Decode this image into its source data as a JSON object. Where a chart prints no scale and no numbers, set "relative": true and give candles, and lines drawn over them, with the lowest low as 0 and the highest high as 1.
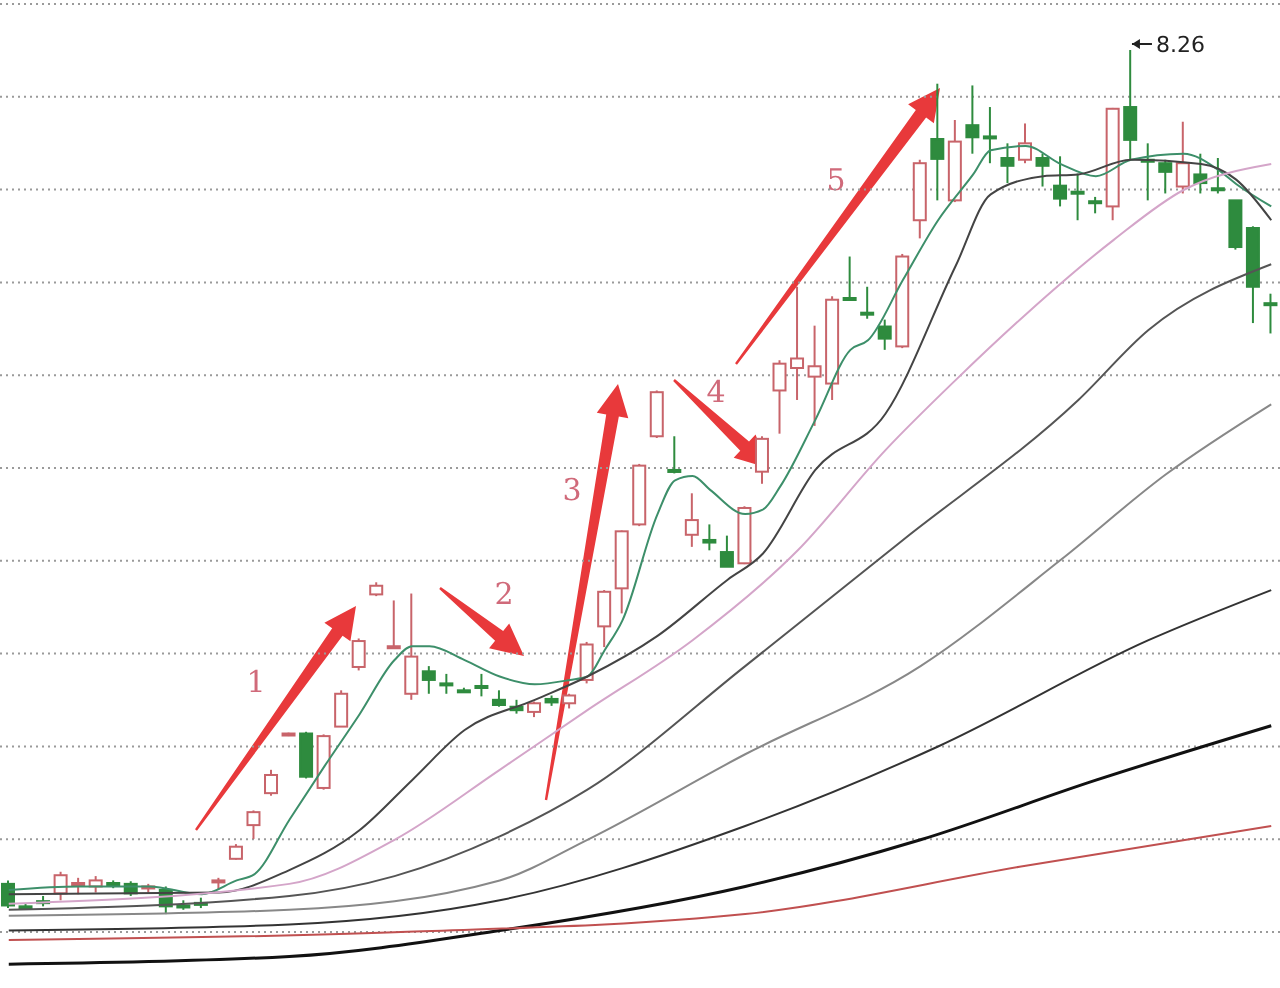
{
  "chart_data": {
    "type": "candlestick",
    "relative": true,
    "grid": "y",
    "categories": [
      null,
      null,
      null,
      null,
      null,
      null,
      null,
      null,
      null,
      null,
      null,
      null,
      null,
      null,
      null,
      null,
      null,
      null,
      null,
      null,
      null,
      null,
      null,
      null,
      null,
      null,
      null,
      null,
      null,
      null,
      null,
      null,
      null,
      null,
      null,
      null,
      null,
      null,
      null,
      null,
      null,
      null,
      null,
      null,
      null,
      null,
      null,
      null,
      null,
      null,
      null,
      null,
      null,
      null,
      null,
      null,
      null,
      null,
      null,
      null,
      null,
      null,
      null,
      null,
      null,
      null,
      null,
      null,
      null,
      null,
      null,
      null,
      null
    ],
    "ohlc": [
      [
        0.035,
        0.039,
        0.007,
        0.01
      ],
      [
        0.009,
        0.012,
        0.005,
        0.008
      ],
      [
        0.015,
        0.021,
        0.009,
        0.014
      ],
      [
        0.024,
        0.049,
        0.016,
        0.045
      ],
      [
        0.035,
        0.042,
        0.023,
        0.036
      ],
      [
        0.032,
        0.044,
        0.025,
        0.039
      ],
      [
        0.036,
        0.039,
        0.03,
        0.035
      ],
      [
        0.035,
        0.038,
        0.021,
        0.024
      ],
      [
        0.031,
        0.035,
        0.025,
        0.032
      ],
      [
        0.028,
        0.032,
        0,
        0.009
      ],
      [
        0.01,
        0.016,
        0.005,
        0.009
      ],
      [
        0.013,
        0.019,
        0.007,
        0.012
      ],
      [
        0.038,
        0.042,
        0.028,
        0.039
      ],
      [
        0.064,
        0.081,
        0.063,
        0.078
      ],
      [
        0.103,
        0.12,
        0.087,
        0.118
      ],
      [
        0.14,
        0.167,
        0.137,
        0.161
      ],
      [
        0.208,
        0.21,
        0.206,
        0.209
      ],
      [
        0.209,
        0.211,
        0.157,
        0.159
      ],
      [
        0.146,
        0.208,
        0.144,
        0.206
      ],
      [
        0.217,
        0.259,
        0.217,
        0.255
      ],
      [
        0.286,
        0.319,
        0.282,
        0.316
      ],
      [
        0.37,
        0.384,
        0.368,
        0.38
      ],
      [
        0.31,
        0.363,
        0.308,
        0.31
      ],
      [
        0.255,
        0.371,
        0.248,
        0.298
      ],
      [
        0.281,
        0.287,
        0.255,
        0.271
      ],
      [
        0.267,
        0.278,
        0.255,
        0.266
      ],
      [
        0.259,
        0.262,
        0.257,
        0.258
      ],
      [
        0.264,
        0.278,
        0.252,
        0.263
      ],
      [
        0.248,
        0.259,
        0.24,
        0.242
      ],
      [
        0.24,
        0.248,
        0.232,
        0.236
      ],
      [
        0.234,
        0.246,
        0.228,
        0.244
      ],
      [
        0.249,
        0.253,
        0.241,
        0.245
      ],
      [
        0.244,
        0.255,
        0.238,
        0.253
      ],
      [
        0.271,
        0.315,
        0.267,
        0.312
      ],
      [
        0.333,
        0.375,
        0.309,
        0.373
      ],
      [
        0.377,
        0.444,
        0.348,
        0.443
      ],
      [
        0.451,
        0.521,
        0.449,
        0.519
      ],
      [
        0.553,
        0.606,
        0.551,
        0.604
      ],
      [
        0.514,
        0.553,
        0.51,
        0.512
      ],
      [
        0.439,
        0.487,
        0.425,
        0.456
      ],
      [
        0.433,
        0.451,
        0.421,
        0.43
      ],
      [
        0.419,
        0.438,
        0.402,
        0.402
      ],
      [
        0.406,
        0.472,
        0.405,
        0.47
      ],
      [
        0.512,
        0.553,
        0.498,
        0.55
      ],
      [
        0.606,
        0.641,
        0.556,
        0.637
      ],
      [
        0.632,
        0.726,
        0.595,
        0.643
      ],
      [
        0.622,
        0.681,
        0.565,
        0.634
      ],
      [
        0.614,
        0.715,
        0.595,
        0.711
      ],
      [
        0.713,
        0.761,
        0.71,
        0.711
      ],
      [
        0.696,
        0.726,
        0.689,
        0.694
      ],
      [
        0.68,
        0.688,
        0.653,
        0.666
      ],
      [
        0.657,
        0.764,
        0.655,
        0.761
      ],
      [
        0.803,
        0.873,
        0.782,
        0.869
      ],
      [
        0.897,
        0.961,
        0.826,
        0.874
      ],
      [
        0.826,
        0.919,
        0.824,
        0.894
      ],
      [
        0.913,
        0.959,
        0.88,
        0.899
      ],
      [
        0.9,
        0.934,
        0.869,
        0.898
      ],
      [
        0.875,
        0.892,
        0.846,
        0.866
      ],
      [
        0.873,
        0.915,
        0.869,
        0.892
      ],
      [
        0.875,
        0.88,
        0.842,
        0.866
      ],
      [
        0.843,
        0.877,
        0.819,
        0.828
      ],
      [
        0.836,
        0.857,
        0.803,
        0.835
      ],
      [
        0.825,
        0.83,
        0.811,
        0.823
      ],
      [
        0.819,
        0.933,
        0.803,
        0.932
      ],
      [
        0.934,
        1,
        0.873,
        0.896
      ],
      [
        0.873,
        0.892,
        0.826,
        0.871
      ],
      [
        0.869,
        0.873,
        0.834,
        0.859
      ],
      [
        0.842,
        0.917,
        0.834,
        0.869
      ],
      [
        0.856,
        0.88,
        0.834,
        0.846
      ],
      [
        0.84,
        0.875,
        0.834,
        0.838
      ],
      [
        0.826,
        0.826,
        0.769,
        0.772
      ],
      [
        0.794,
        0.796,
        0.684,
        0.726
      ],
      [
        0.707,
        0.718,
        0.672,
        0.705
      ]
    ],
    "colors": [
      "#2e8b3e",
      "#2e8b3e",
      "#2e8b3e",
      "#c8646a",
      "#c8646a",
      "#c8646a",
      "#2e8b3e",
      "#2e8b3e",
      "#c8646a",
      "#2e8b3e",
      "#2e8b3e",
      "#2e8b3e",
      "#c8646a",
      "#c8646a",
      "#c8646a",
      "#c8646a",
      "#c8646a",
      "#2e8b3e",
      "#c8646a",
      "#c8646a",
      "#c8646a",
      "#c8646a",
      "#c8646a",
      "#c8646a",
      "#2e8b3e",
      "#2e8b3e",
      "#2e8b3e",
      "#2e8b3e",
      "#2e8b3e",
      "#2e8b3e",
      "#c8646a",
      "#2e8b3e",
      "#c8646a",
      "#c8646a",
      "#c8646a",
      "#c8646a",
      "#c8646a",
      "#c8646a",
      "#2e8b3e",
      "#c8646a",
      "#2e8b3e",
      "#2e8b3e",
      "#c8646a",
      "#c8646a",
      "#c8646a",
      "#c8646a",
      "#c8646a",
      "#c8646a",
      "#2e8b3e",
      "#2e8b3e",
      "#2e8b3e",
      "#c8646a",
      "#c8646a",
      "#2e8b3e",
      "#c8646a",
      "#2e8b3e",
      "#2e8b3e",
      "#2e8b3e",
      "#c8646a",
      "#2e8b3e",
      "#2e8b3e",
      "#2e8b3e",
      "#2e8b3e",
      "#c8646a",
      "#2e8b3e",
      "#2e8b3e",
      "#2e8b3e",
      "#c8646a",
      "#2e8b3e",
      "#2e8b3e",
      "#2e8b3e",
      "#2e8b3e",
      "#2e8b3e"
    ],
    "series": [
      {
        "type": "line",
        "color": "#3d8f6a",
        "values": [
          0.028,
          null,
          null,
          null,
          0.032,
          null,
          null,
          null,
          0.032,
          null,
          null,
          0.023,
          null,
          0.039,
          0.046,
          null,
          0.109,
          null,
          0.171,
          null,
          0.231,
          null,
          0.294,
          0.31,
          0.31,
          null,
          0.294,
          null,
          0.275,
          null,
          0.266,
          null,
          0.271,
          0.275,
          0.306,
          0.34,
          null,
          0.463,
          0.502,
          0.507,
          0.491,
          null,
          0.463,
          0.468,
          0.495,
          null,
          0.572,
          null,
          0.653,
          0.664,
          null,
          0.734,
          null,
          0.803,
          null,
          0.856,
          0.884,
          null,
          0.889,
          null,
          0.868,
          null,
          0.854,
          null,
          0.873,
          null,
          null,
          0.88,
          null,
          0.861,
          0.845,
          null,
          0.819
        ]
      },
      {
        "type": "line",
        "color": "#444444",
        "values": [
          0.023,
          null,
          null,
          null,
          null,
          null,
          null,
          null,
          null,
          null,
          null,
          null,
          0.025,
          null,
          null,
          null,
          0.051,
          null,
          null,
          null,
          0.097,
          null,
          null,
          0.155,
          null,
          null,
          0.213,
          null,
          null,
          null,
          0.248,
          null,
          null,
          0.275,
          null,
          null,
          null,
          0.322,
          null,
          null,
          null,
          0.387,
          null,
          0.417,
          null,
          null,
          0.514,
          null,
          null,
          null,
          0.579,
          null,
          null,
          null,
          0.75,
          null,
          0.833,
          null,
          null,
          0.854,
          null,
          0.856,
          null,
          null,
          0.873,
          null,
          null,
          null,
          0.868,
          null,
          0.85,
          null,
          0.803
        ]
      },
      {
        "type": "line",
        "color": "#d4a5c9",
        "values": [
          0.012,
          null,
          null,
          null,
          null,
          null,
          null,
          null,
          null,
          null,
          null,
          null,
          null,
          null,
          null,
          null,
          0.035,
          null,
          null,
          null,
          null,
          null,
          0.086,
          null,
          null,
          null,
          null,
          null,
          0.167,
          null,
          null,
          null,
          null,
          0.236,
          null,
          null,
          null,
          null,
          null,
          0.317,
          null,
          null,
          null,
          null,
          null,
          0.421,
          null,
          null,
          null,
          null,
          0.537,
          null,
          null,
          null,
          0.618,
          null,
          null,
          null,
          0.694,
          null,
          null,
          null,
          null,
          0.78,
          null,
          null,
          null,
          0.838,
          null,
          null,
          null,
          null,
          0.868
        ]
      },
      {
        "type": "line",
        "color": "#555555",
        "values": [
          0.005,
          null,
          null,
          null,
          null,
          null,
          null,
          null,
          null,
          null,
          null,
          null,
          null,
          null,
          null,
          null,
          0.021,
          null,
          null,
          null,
          null,
          null,
          0.044,
          null,
          null,
          null,
          null,
          null,
          0.09,
          null,
          null,
          null,
          null,
          0.144,
          null,
          null,
          null,
          null,
          null,
          null,
          null,
          null,
          0.287,
          null,
          null,
          null,
          null,
          null,
          null,
          null,
          null,
          0.433,
          null,
          null,
          null,
          null,
          null,
          null,
          null,
          null,
          null,
          0.595,
          null,
          null,
          null,
          0.676,
          null,
          null,
          null,
          null,
          null,
          null,
          0.752
        ]
      },
      {
        "type": "line",
        "color": "#888888",
        "values": [
          -0.002,
          null,
          null,
          null,
          null,
          null,
          null,
          null,
          null,
          null,
          null,
          null,
          null,
          null,
          null,
          null,
          0.005,
          null,
          null,
          null,
          null,
          null,
          null,
          null,
          null,
          null,
          null,
          null,
          0.039,
          null,
          null,
          null,
          null,
          0.086,
          null,
          null,
          null,
          null,
          null,
          null,
          null,
          null,
          0.185,
          null,
          null,
          null,
          null,
          null,
          null,
          null,
          null,
          null,
          0.287,
          null,
          null,
          null,
          null,
          null,
          null,
          null,
          0.41,
          null,
          null,
          null,
          null,
          null,
          0.509,
          null,
          null,
          null,
          null,
          null,
          0.59
        ]
      },
      {
        "type": "line",
        "color": "#333333",
        "values": [
          -0.019,
          null,
          null,
          null,
          null,
          null,
          null,
          null,
          null,
          null,
          null,
          null,
          null,
          null,
          null,
          null,
          -0.012,
          null,
          null,
          null,
          null,
          null,
          null,
          null,
          null,
          null,
          null,
          null,
          0.016,
          null,
          null,
          null,
          null,
          null,
          null,
          null,
          null,
          null,
          null,
          null,
          null,
          null,
          0.102,
          null,
          null,
          null,
          null,
          null,
          null,
          null,
          null,
          null,
          null,
          0.194,
          null,
          null,
          null,
          null,
          null,
          null,
          null,
          null,
          null,
          null,
          null,
          0.317,
          null,
          null,
          null,
          null,
          null,
          null,
          0.375
        ]
      },
      {
        "type": "line",
        "color": "#111111",
        "values": [
          -0.058,
          null,
          null,
          null,
          null,
          null,
          null,
          null,
          null,
          null,
          null,
          null,
          null,
          null,
          null,
          null,
          -0.049,
          null,
          null,
          null,
          null,
          null,
          null,
          null,
          null,
          null,
          null,
          null,
          -0.019,
          null,
          null,
          null,
          null,
          null,
          null,
          null,
          null,
          null,
          null,
          null,
          null,
          null,
          0.032,
          null,
          null,
          null,
          null,
          null,
          null,
          null,
          null,
          null,
          0.086,
          null,
          null,
          null,
          null,
          null,
          null,
          null,
          null,
          null,
          0.155,
          null,
          null,
          null,
          null,
          null,
          null,
          null,
          null,
          null,
          0.218
        ]
      },
      {
        "type": "line",
        "color": "#c05050",
        "values": [
          -0.03,
          null,
          null,
          null,
          null,
          null,
          null,
          null,
          null,
          null,
          null,
          null,
          null,
          null,
          null,
          null,
          null,
          null,
          null,
          null,
          null,
          null,
          -0.021,
          null,
          null,
          null,
          null,
          null,
          null,
          null,
          null,
          null,
          null,
          null,
          null,
          null,
          null,
          null,
          null,
          null,
          null,
          null,
          0,
          null,
          null,
          null,
          null,
          null,
          null,
          null,
          null,
          null,
          null,
          null,
          null,
          null,
          null,
          null,
          0.056,
          null,
          null,
          null,
          null,
          null,
          null,
          null,
          null,
          null,
          null,
          null,
          null,
          null,
          0.102
        ]
      }
    ],
    "annotations": [
      "1",
      "2",
      "3",
      "4",
      "8.26",
      "5"
    ]
  }
}
